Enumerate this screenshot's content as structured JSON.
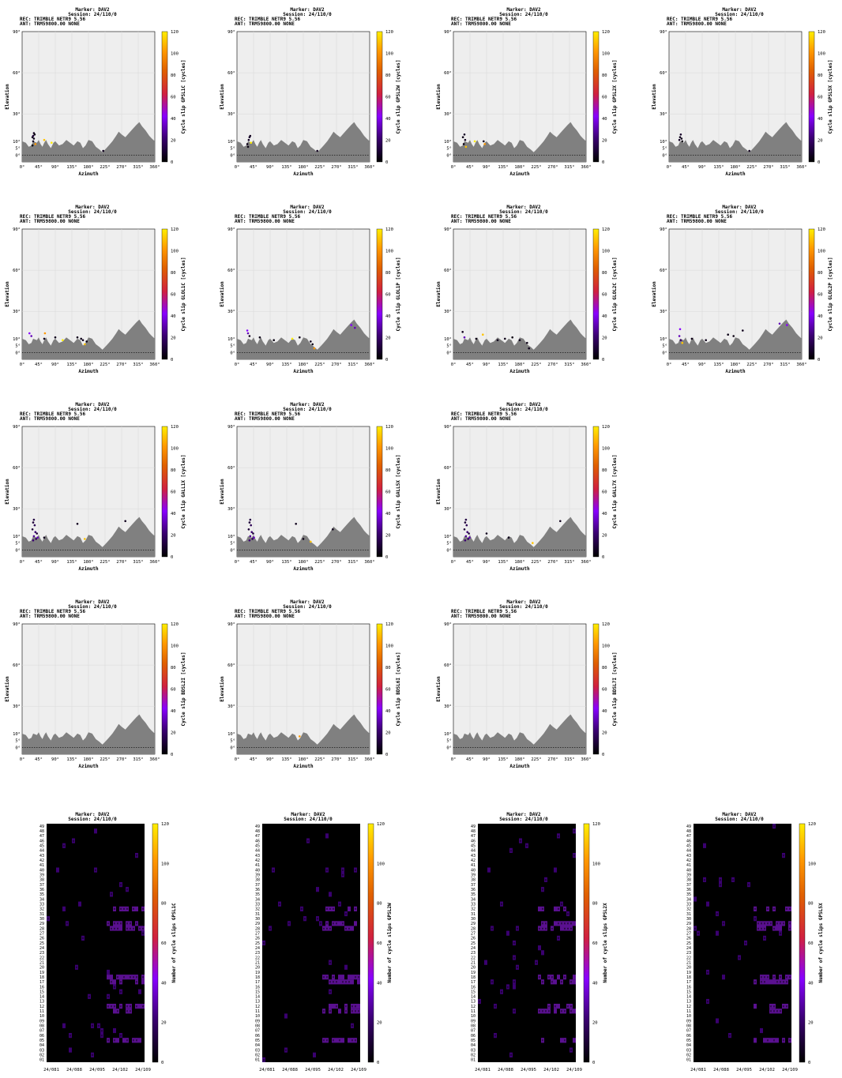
{
  "header": {
    "marker": "Marker: DAV2",
    "session": "Session: 24/110/0",
    "rec": "REC: TRIMBLE NETR9       5.56",
    "ant": "ANT: TRM59800.00     NONE"
  },
  "colors": {
    "bg": "#eeeeee",
    "horizon": "#808080",
    "zeroline": "#000000"
  },
  "colorbar": {
    "ticks": [
      "0",
      "20",
      "40",
      "60",
      "80",
      "100",
      "120"
    ],
    "min": 0,
    "max": 120,
    "colors": [
      "#000000",
      "#3a0070",
      "#8800ff",
      "#d02040",
      "#e06000",
      "#ff9900",
      "#ffee00"
    ]
  },
  "skyplot": {
    "xlabel": "Azimuth",
    "ylabel": "Elevation",
    "xticks": [
      "0°",
      "45°",
      "90°",
      "135°",
      "180°",
      "225°",
      "270°",
      "315°",
      "360°"
    ],
    "yticks": [
      "0°",
      "5°",
      "10°",
      "30°",
      "60°",
      "90°"
    ]
  },
  "chart_data": [
    {
      "type": "scatter",
      "panel": "GPSL1C",
      "cblabel": "Cycle slip GPSL1C [cycles]",
      "header_lines": 4,
      "points": [
        [
          28,
          13,
          5
        ],
        [
          30,
          14,
          10
        ],
        [
          32,
          16,
          5
        ],
        [
          34,
          15,
          3
        ],
        [
          32,
          12,
          4
        ],
        [
          30,
          10,
          6
        ],
        [
          36,
          8,
          100
        ],
        [
          28,
          7,
          2
        ],
        [
          60,
          11,
          110
        ],
        [
          80,
          9,
          120
        ],
        [
          220,
          3,
          5
        ]
      ]
    },
    {
      "type": "scatter",
      "panel": "GPSL2W",
      "cblabel": "Cycle slip GPSL2W [cycles]",
      "header_lines": 4,
      "points": [
        [
          28,
          8,
          4
        ],
        [
          32,
          11,
          6
        ],
        [
          34,
          13,
          8
        ],
        [
          36,
          14,
          5
        ],
        [
          30,
          6,
          3
        ],
        [
          38,
          9,
          120
        ],
        [
          218,
          3,
          5
        ]
      ]
    },
    {
      "type": "scatter",
      "panel": "GPSL2X",
      "cblabel": "Cycle slip GPSL2X [cycles]",
      "header_lines": 4,
      "points": [
        [
          26,
          13,
          4
        ],
        [
          30,
          15,
          6
        ],
        [
          32,
          11,
          5
        ],
        [
          28,
          8,
          3
        ],
        [
          34,
          6,
          110
        ],
        [
          58,
          10,
          120
        ],
        [
          82,
          10,
          5
        ],
        [
          85,
          8,
          100
        ]
      ]
    },
    {
      "type": "scatter",
      "panel": "GPSL5X",
      "cblabel": "Cycle slip GPSL5X [cycles]",
      "header_lines": 4,
      "points": [
        [
          30,
          13,
          5
        ],
        [
          32,
          15,
          7
        ],
        [
          34,
          12,
          4
        ],
        [
          28,
          11,
          6
        ],
        [
          36,
          10,
          3
        ],
        [
          218,
          3,
          5
        ]
      ]
    },
    {
      "type": "scatter",
      "panel": "GLOL1C",
      "cblabel": "Cycle slip GLOL1C [cycles]",
      "header_lines": 4,
      "points": [
        [
          20,
          14,
          40
        ],
        [
          25,
          12,
          30
        ],
        [
          60,
          10,
          5
        ],
        [
          62,
          14,
          100
        ],
        [
          90,
          11,
          5
        ],
        [
          150,
          11,
          5
        ],
        [
          160,
          10,
          4
        ],
        [
          165,
          9,
          5
        ],
        [
          170,
          6,
          110
        ],
        [
          175,
          8,
          4
        ],
        [
          110,
          9,
          120
        ]
      ]
    },
    {
      "type": "scatter",
      "panel": "GLOL1P",
      "cblabel": "Cycle slip GLOL1P [cycles]",
      "header_lines": 4,
      "points": [
        [
          28,
          16,
          40
        ],
        [
          30,
          14,
          30
        ],
        [
          34,
          12,
          5
        ],
        [
          62,
          11,
          4
        ],
        [
          100,
          9,
          3
        ],
        [
          150,
          10,
          120
        ],
        [
          170,
          11,
          5
        ],
        [
          200,
          8,
          5
        ],
        [
          205,
          6,
          4
        ],
        [
          210,
          3,
          100
        ],
        [
          310,
          20,
          40
        ],
        [
          320,
          18,
          30
        ]
      ]
    },
    {
      "type": "scatter",
      "panel": "GLOL2C",
      "cblabel": "Cycle slip GLOL2C [cycles]",
      "header_lines": 4,
      "points": [
        [
          25,
          15,
          5
        ],
        [
          30,
          11,
          30
        ],
        [
          62,
          10,
          4
        ],
        [
          80,
          13,
          110
        ],
        [
          120,
          9,
          5
        ],
        [
          140,
          10,
          4
        ],
        [
          160,
          11,
          3
        ],
        [
          180,
          9,
          5
        ],
        [
          200,
          7,
          4
        ],
        [
          205,
          3,
          5
        ]
      ]
    },
    {
      "type": "scatter",
      "panel": "GLOL2P",
      "cblabel": "Cycle slip GLOL2P [cycles]",
      "header_lines": 4,
      "points": [
        [
          30,
          17,
          40
        ],
        [
          28,
          12,
          30
        ],
        [
          32,
          9,
          20
        ],
        [
          36,
          7,
          110
        ],
        [
          62,
          10,
          4
        ],
        [
          100,
          9,
          5
        ],
        [
          160,
          13,
          4
        ],
        [
          175,
          12,
          3
        ],
        [
          200,
          16,
          5
        ],
        [
          300,
          21,
          30
        ],
        [
          320,
          20,
          40
        ]
      ]
    },
    {
      "type": "scatter",
      "panel": "GALL1X",
      "cblabel": "Cycle slip GALL1X [cycles]",
      "header_lines": 4,
      "points": [
        [
          30,
          20,
          10
        ],
        [
          32,
          22,
          12
        ],
        [
          34,
          18,
          15
        ],
        [
          28,
          15,
          10
        ],
        [
          36,
          13,
          20
        ],
        [
          32,
          10,
          25
        ],
        [
          38,
          8,
          15
        ],
        [
          40,
          12,
          10
        ],
        [
          42,
          9,
          30
        ],
        [
          30,
          7,
          20
        ],
        [
          60,
          9,
          5
        ],
        [
          150,
          19,
          5
        ],
        [
          170,
          8,
          110
        ],
        [
          280,
          21,
          5
        ]
      ]
    },
    {
      "type": "scatter",
      "panel": "GALL5X",
      "cblabel": "Cycle slip GALL5X [cycles]",
      "header_lines": 4,
      "points": [
        [
          34,
          20,
          10
        ],
        [
          36,
          22,
          12
        ],
        [
          38,
          18,
          15
        ],
        [
          32,
          15,
          10
        ],
        [
          40,
          13,
          20
        ],
        [
          36,
          10,
          25
        ],
        [
          42,
          8,
          15
        ],
        [
          44,
          12,
          10
        ],
        [
          46,
          9,
          30
        ],
        [
          34,
          7,
          20
        ],
        [
          160,
          19,
          5
        ],
        [
          180,
          8,
          4
        ],
        [
          200,
          6,
          110
        ],
        [
          260,
          15,
          5
        ]
      ]
    },
    {
      "type": "scatter",
      "panel": "GALL7X",
      "cblabel": "Cycle slip GALL7X [cycles]",
      "header_lines": 4,
      "points": [
        [
          32,
          20,
          10
        ],
        [
          34,
          22,
          12
        ],
        [
          36,
          18,
          15
        ],
        [
          30,
          15,
          10
        ],
        [
          38,
          13,
          20
        ],
        [
          34,
          10,
          25
        ],
        [
          40,
          8,
          15
        ],
        [
          42,
          12,
          10
        ],
        [
          44,
          9,
          30
        ],
        [
          32,
          7,
          20
        ],
        [
          90,
          12,
          5
        ],
        [
          150,
          9,
          5
        ],
        [
          215,
          5,
          110
        ],
        [
          290,
          21,
          5
        ]
      ]
    },
    {
      "type": "scatter",
      "panel": "BDSL2I",
      "cblabel": "Cycle slip BDSL2I [cycles]",
      "header_lines": 4,
      "points": []
    },
    {
      "type": "scatter",
      "panel": "BDSL6I",
      "cblabel": "Cycle slip BDSL6I [cycles]",
      "header_lines": 4,
      "points": [
        [
          170,
          8,
          100
        ]
      ]
    },
    {
      "type": "scatter",
      "panel": "BDSL7I",
      "cblabel": "Cycle slip BDSL7I [cycles]",
      "header_lines": 4,
      "points": []
    },
    {
      "type": "heatmap",
      "panel": "GPSL1C",
      "cblabel": "Number of cycle slips GPSL1C",
      "xticks": [
        "24/081",
        "24/088",
        "24/095",
        "24/102",
        "24/109"
      ],
      "yticks": [
        "01",
        "02",
        "03",
        "04",
        "05",
        "06",
        "07",
        "08",
        "09",
        "10",
        "11",
        "12",
        "13",
        "14",
        "15",
        "16",
        "17",
        "18",
        "19",
        "20",
        "21",
        "22",
        "23",
        "24",
        "25",
        "26",
        "27",
        "28",
        "29",
        "30",
        "31",
        "32",
        "33",
        "34",
        "35",
        "36",
        "37",
        "38",
        "39",
        "40",
        "41",
        "42",
        "43",
        "44",
        "45",
        "46",
        "47",
        "48",
        "49"
      ]
    },
    {
      "type": "heatmap",
      "panel": "GPSL2W",
      "cblabel": "Number of cycle slips GPSL2W",
      "xticks": [
        "24/081",
        "24/088",
        "24/095",
        "24/102",
        "24/109"
      ],
      "yticks": [
        "01",
        "02",
        "03",
        "04",
        "05",
        "06",
        "07",
        "08",
        "09",
        "10",
        "11",
        "12",
        "13",
        "14",
        "15",
        "16",
        "17",
        "18",
        "19",
        "20",
        "21",
        "22",
        "23",
        "24",
        "25",
        "26",
        "27",
        "28",
        "29",
        "30",
        "31",
        "32",
        "33",
        "34",
        "35",
        "36",
        "37",
        "38",
        "39",
        "40",
        "41",
        "42",
        "43",
        "44",
        "45",
        "46",
        "47",
        "48",
        "49"
      ]
    },
    {
      "type": "heatmap",
      "panel": "GPSL2X",
      "cblabel": "Number of cycle slips GPSL2X",
      "xticks": [
        "24/081",
        "24/088",
        "24/095",
        "24/102",
        "24/109"
      ],
      "yticks": [
        "01",
        "02",
        "03",
        "04",
        "05",
        "06",
        "07",
        "08",
        "09",
        "10",
        "11",
        "12",
        "13",
        "14",
        "15",
        "16",
        "17",
        "18",
        "19",
        "20",
        "21",
        "22",
        "23",
        "24",
        "25",
        "26",
        "27",
        "28",
        "29",
        "30",
        "31",
        "32",
        "33",
        "34",
        "35",
        "36",
        "37",
        "38",
        "39",
        "40",
        "41",
        "42",
        "43",
        "44",
        "45",
        "46",
        "47",
        "48",
        "49"
      ]
    },
    {
      "type": "heatmap",
      "panel": "GPSL5X",
      "cblabel": "Number of cycle slips GPSL5X",
      "xticks": [
        "24/081",
        "24/088",
        "24/095",
        "24/102",
        "24/109"
      ],
      "yticks": [
        "01",
        "02",
        "03",
        "04",
        "05",
        "06",
        "07",
        "08",
        "09",
        "10",
        "11",
        "12",
        "13",
        "14",
        "15",
        "16",
        "17",
        "18",
        "19",
        "20",
        "21",
        "22",
        "23",
        "24",
        "25",
        "26",
        "27",
        "28",
        "29",
        "30",
        "31",
        "32",
        "33",
        "34",
        "35",
        "36",
        "37",
        "38",
        "39",
        "40",
        "41",
        "42",
        "43",
        "44",
        "45",
        "46",
        "47",
        "48",
        "49"
      ]
    }
  ]
}
